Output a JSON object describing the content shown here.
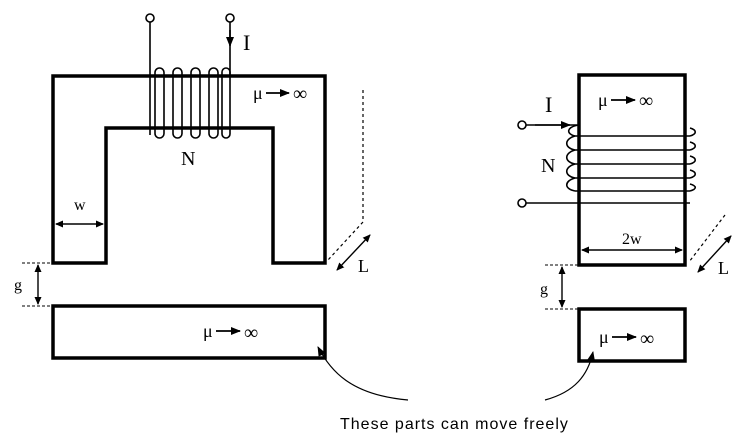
{
  "left_diagram": {
    "current_label": "I",
    "turns_label": "N",
    "width_label": "w",
    "gap_label": "g",
    "depth_label": "L",
    "core_permeability": "μ",
    "core_infinity": "∞",
    "bar_permeability": "μ",
    "bar_infinity": "∞"
  },
  "right_diagram": {
    "current_label": "I",
    "turns_label": "N",
    "width_label": "2w",
    "gap_label": "g",
    "depth_label": "L",
    "core_permeability": "μ",
    "core_infinity": "∞",
    "bar_permeability": "μ",
    "bar_infinity": "∞"
  },
  "caption": "These parts can move freely"
}
